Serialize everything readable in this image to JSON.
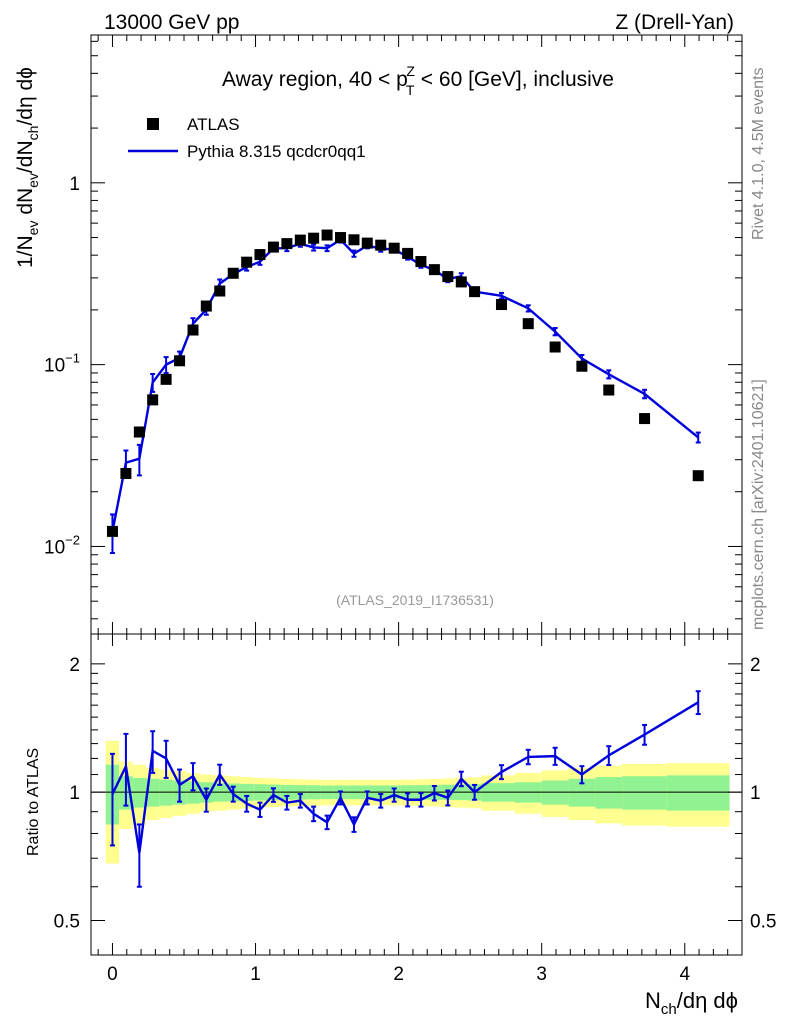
{
  "header": {
    "energy_label": "13000 GeV pp",
    "process_label": "Z (Drell-Yan)"
  },
  "side_labels": {
    "rivet": "Rivet 4.1.0,  4.5M events",
    "source": "mcplots.cern.ch [arXiv:2401.10621]"
  },
  "chart_data": [
    {
      "type": "scatter",
      "panel": "main",
      "title_parts": [
        "Away region, 40 < p",
        "T",
        "Z",
        " < 60 [GeV], inclusive"
      ],
      "reference": "(ATLAS_2019_I1736531)",
      "ylabel_parts": [
        "1/N",
        "ev",
        " dN",
        "ev",
        "/dN",
        "ch",
        "/dη dϕ"
      ],
      "xlabel_parts": [
        "N",
        "ch",
        "/dη dϕ"
      ],
      "yscale": "log",
      "ylim": [
        0.0033,
        6.5
      ],
      "xlim": [
        -0.15,
        4.4
      ],
      "yticks": [
        {
          "value": 0.01,
          "base": "10",
          "exp": "−2"
        },
        {
          "value": 0.1,
          "base": "10",
          "exp": "−1"
        },
        {
          "value": 1,
          "base": "1",
          "exp": ""
        }
      ],
      "legend_position": "top-left",
      "legend": [
        "ATLAS",
        "Pythia 8.315 qcdcr0qq1"
      ],
      "series": [
        {
          "name": "ATLAS",
          "style": "black squares",
          "color": "#000000",
          "points": [
            [
              0.0,
              0.0121
            ],
            [
              0.094,
              0.0252
            ],
            [
              0.188,
              0.0426
            ],
            [
              0.281,
              0.064
            ],
            [
              0.375,
              0.083
            ],
            [
              0.469,
              0.105
            ],
            [
              0.563,
              0.155
            ],
            [
              0.656,
              0.21
            ],
            [
              0.75,
              0.254
            ],
            [
              0.844,
              0.318
            ],
            [
              0.938,
              0.366
            ],
            [
              1.031,
              0.403
            ],
            [
              1.125,
              0.443
            ],
            [
              1.219,
              0.463
            ],
            [
              1.313,
              0.484
            ],
            [
              1.406,
              0.496
            ],
            [
              1.5,
              0.516
            ],
            [
              1.594,
              0.5
            ],
            [
              1.688,
              0.486
            ],
            [
              1.781,
              0.466
            ],
            [
              1.875,
              0.454
            ],
            [
              1.969,
              0.437
            ],
            [
              2.063,
              0.409
            ],
            [
              2.156,
              0.369
            ],
            [
              2.25,
              0.333
            ],
            [
              2.344,
              0.305
            ],
            [
              2.438,
              0.285
            ],
            [
              2.531,
              0.252
            ],
            [
              2.719,
              0.214
            ],
            [
              2.906,
              0.168
            ],
            [
              3.094,
              0.125
            ],
            [
              3.281,
              0.098
            ],
            [
              3.469,
              0.0725
            ],
            [
              3.719,
              0.0505
            ],
            [
              4.094,
              0.0245
            ]
          ]
        },
        {
          "name": "Pythia 8.315 qcdcr0qq1",
          "style": "blue line with error bars",
          "color": "#0000dd",
          "points": [
            [
              0.0,
              0.0121,
              0.0029
            ],
            [
              0.094,
              0.0289,
              0.0048
            ],
            [
              0.188,
              0.0304,
              0.0058
            ],
            [
              0.281,
              0.0798,
              0.009
            ],
            [
              0.375,
              0.1,
              0.01
            ],
            [
              0.469,
              0.109,
              0.009
            ],
            [
              0.563,
              0.168,
              0.012
            ],
            [
              0.656,
              0.201,
              0.013
            ],
            [
              0.75,
              0.279,
              0.015
            ],
            [
              0.844,
              0.315,
              0.013
            ],
            [
              0.938,
              0.344,
              0.015
            ],
            [
              1.031,
              0.368,
              0.014
            ],
            [
              1.125,
              0.436,
              0.016
            ],
            [
              1.219,
              0.437,
              0.016
            ],
            [
              1.313,
              0.462,
              0.017
            ],
            [
              1.406,
              0.441,
              0.017
            ],
            [
              1.5,
              0.437,
              0.016
            ],
            [
              1.594,
              0.486,
              0.017
            ],
            [
              1.688,
              0.408,
              0.016
            ],
            [
              1.781,
              0.452,
              0.016
            ],
            [
              1.875,
              0.434,
              0.016
            ],
            [
              1.969,
              0.43,
              0.015
            ],
            [
              2.063,
              0.392,
              0.014
            ],
            [
              2.156,
              0.354,
              0.013
            ],
            [
              2.25,
              0.331,
              0.013
            ],
            [
              2.344,
              0.296,
              0.012
            ],
            [
              2.438,
              0.306,
              0.012
            ],
            [
              2.531,
              0.252,
              0.01
            ],
            [
              2.719,
              0.239,
              0.009
            ],
            [
              2.906,
              0.204,
              0.008
            ],
            [
              3.094,
              0.152,
              0.007
            ],
            [
              3.281,
              0.108,
              0.005
            ],
            [
              3.469,
              0.0885,
              0.0045
            ],
            [
              3.719,
              0.069,
              0.0037
            ],
            [
              4.094,
              0.0398,
              0.0025
            ]
          ]
        }
      ]
    },
    {
      "type": "line",
      "panel": "ratio",
      "ylabel": "Ratio to ATLAS",
      "yscale": "log",
      "ylim": [
        0.415,
        2.35
      ],
      "xlim": [
        -0.15,
        4.4
      ],
      "yticks": [
        0.5,
        1,
        2
      ],
      "ytick_labels": [
        "0.5",
        "1",
        "2"
      ],
      "xticks": [
        0,
        1,
        2,
        3,
        4
      ],
      "xtick_labels": [
        "0",
        "1",
        "2",
        "3",
        "4"
      ],
      "band_edges": [
        -0.047,
        0.047,
        0.141,
        0.234,
        0.328,
        0.422,
        0.516,
        0.609,
        0.703,
        0.797,
        0.891,
        0.984,
        1.078,
        1.172,
        1.266,
        1.359,
        1.453,
        1.547,
        1.641,
        1.734,
        1.828,
        1.922,
        2.016,
        2.109,
        2.203,
        2.297,
        2.391,
        2.484,
        2.578,
        2.813,
        3.0,
        3.188,
        3.375,
        3.563,
        3.875,
        4.313
      ],
      "band_1sigma": [
        0.16,
        0.09,
        0.08,
        0.075,
        0.07,
        0.065,
        0.06,
        0.055,
        0.05,
        0.048,
        0.046,
        0.044,
        0.042,
        0.04,
        0.039,
        0.038,
        0.037,
        0.037,
        0.037,
        0.037,
        0.037,
        0.037,
        0.038,
        0.039,
        0.04,
        0.041,
        0.042,
        0.044,
        0.05,
        0.055,
        0.065,
        0.075,
        0.085,
        0.09,
        0.095
      ],
      "band_2sigma": [
        0.32,
        0.18,
        0.16,
        0.14,
        0.13,
        0.12,
        0.11,
        0.1,
        0.095,
        0.09,
        0.085,
        0.08,
        0.077,
        0.074,
        0.072,
        0.07,
        0.069,
        0.069,
        0.069,
        0.069,
        0.069,
        0.069,
        0.07,
        0.072,
        0.074,
        0.077,
        0.08,
        0.083,
        0.095,
        0.11,
        0.125,
        0.14,
        0.155,
        0.165,
        0.17
      ],
      "band_colors": {
        "inner": "#90f290",
        "outer": "#ffff90"
      },
      "series": [
        {
          "name": "Pythia 8.315 qcdcr0qq1 / ATLAS",
          "color": "#0000dd",
          "points": [
            [
              0.0,
              0.99,
              0.24
            ],
            [
              0.094,
              1.15,
              0.22
            ],
            [
              0.188,
              0.72,
              0.12
            ],
            [
              0.281,
              1.25,
              0.14
            ],
            [
              0.375,
              1.2,
              0.12
            ],
            [
              0.469,
              1.04,
              0.09
            ],
            [
              0.563,
              1.09,
              0.08
            ],
            [
              0.656,
              0.96,
              0.06
            ],
            [
              0.75,
              1.1,
              0.06
            ],
            [
              0.844,
              0.99,
              0.04
            ],
            [
              0.938,
              0.94,
              0.04
            ],
            [
              1.031,
              0.91,
              0.035
            ],
            [
              1.125,
              0.985,
              0.036
            ],
            [
              1.219,
              0.945,
              0.035
            ],
            [
              1.313,
              0.955,
              0.035
            ],
            [
              1.406,
              0.89,
              0.035
            ],
            [
              1.5,
              0.85,
              0.031
            ],
            [
              1.594,
              0.97,
              0.034
            ],
            [
              1.688,
              0.84,
              0.033
            ],
            [
              1.781,
              0.97,
              0.034
            ],
            [
              1.875,
              0.955,
              0.035
            ],
            [
              1.969,
              0.985,
              0.035
            ],
            [
              2.063,
              0.96,
              0.034
            ],
            [
              2.156,
              0.96,
              0.035
            ],
            [
              2.25,
              0.995,
              0.039
            ],
            [
              2.344,
              0.97,
              0.039
            ],
            [
              2.438,
              1.075,
              0.042
            ],
            [
              2.531,
              1.0,
              0.04
            ],
            [
              2.719,
              1.115,
              0.042
            ],
            [
              2.906,
              1.21,
              0.047
            ],
            [
              3.094,
              1.215,
              0.056
            ],
            [
              3.281,
              1.1,
              0.051
            ],
            [
              3.469,
              1.22,
              0.062
            ],
            [
              3.719,
              1.365,
              0.073
            ],
            [
              4.094,
              1.625,
              0.1
            ]
          ]
        }
      ]
    }
  ]
}
